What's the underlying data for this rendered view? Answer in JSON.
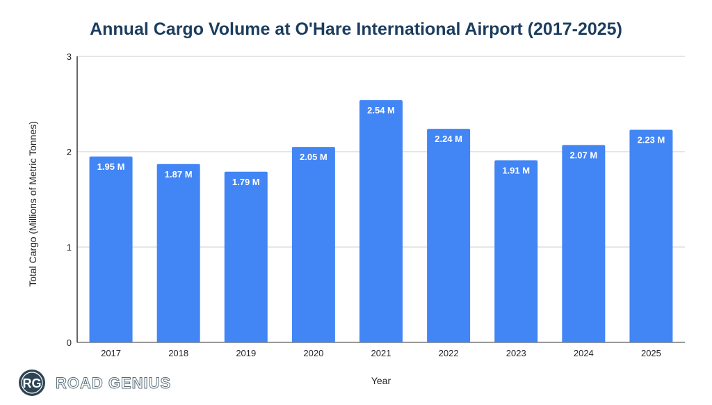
{
  "chart_data": {
    "type": "bar",
    "title": "Annual Cargo Volume at O'Hare International Airport (2017-2025)",
    "xlabel": "Year",
    "ylabel": "Total Cargo (Millions of Metric Tonnes)",
    "ylim": [
      0,
      3
    ],
    "yticks": [
      "0",
      "1",
      "2",
      "3"
    ],
    "grid": true,
    "categories": [
      "2017",
      "2018",
      "2019",
      "2020",
      "2021",
      "2022",
      "2023",
      "2024",
      "2025"
    ],
    "values": [
      1.95,
      1.87,
      1.79,
      2.05,
      2.54,
      2.24,
      1.91,
      2.07,
      2.23
    ],
    "data_labels": [
      "1.95 M",
      "1.87 M",
      "1.79 M",
      "2.05 M",
      "2.54 M",
      "2.24 M",
      "1.91 M",
      "2.07 M",
      "2.23 M"
    ],
    "colors": {
      "bar": "#4285f4",
      "title": "#1c3d5e",
      "label": "#ffffff"
    }
  },
  "logo": {
    "initials": "RG",
    "text": "ROAD GENIUS",
    "color": "#2c4454"
  }
}
